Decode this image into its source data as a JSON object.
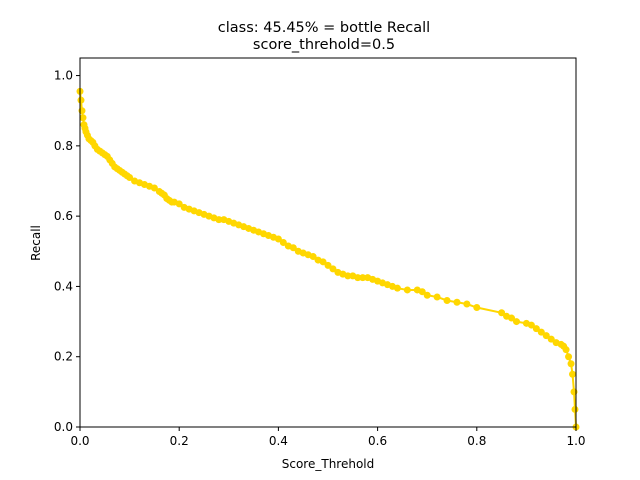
{
  "chart_data": {
    "type": "line",
    "title_line1": "class: 45.45% = bottle Recall",
    "title_line2": "score_threhold=0.5",
    "xlabel": "Score_Threhold",
    "ylabel": "Recall",
    "xlim": [
      0.0,
      1.0
    ],
    "ylim": [
      0.0,
      1.05
    ],
    "x_ticks": [
      "0.0",
      "0.2",
      "0.4",
      "0.6",
      "0.8",
      "1.0"
    ],
    "y_ticks": [
      "0.0",
      "0.2",
      "0.4",
      "0.6",
      "0.8",
      "1.0"
    ],
    "grid": false,
    "line_color": "#FFD700",
    "marker": "circle",
    "series": [
      {
        "x": [
          0.0,
          0.002,
          0.004,
          0.006,
          0.008,
          0.01,
          0.012,
          0.015,
          0.018,
          0.022,
          0.026,
          0.03,
          0.035,
          0.04,
          0.045,
          0.05,
          0.055,
          0.06,
          0.065,
          0.07,
          0.075,
          0.08,
          0.085,
          0.09,
          0.095,
          0.1,
          0.11,
          0.12,
          0.13,
          0.14,
          0.15,
          0.16,
          0.165,
          0.17,
          0.175,
          0.18,
          0.185,
          0.19,
          0.2,
          0.21,
          0.22,
          0.23,
          0.24,
          0.25,
          0.26,
          0.27,
          0.28,
          0.29,
          0.3,
          0.31,
          0.32,
          0.33,
          0.34,
          0.35,
          0.36,
          0.37,
          0.38,
          0.39,
          0.4,
          0.41,
          0.42,
          0.43,
          0.44,
          0.45,
          0.46,
          0.47,
          0.48,
          0.49,
          0.5,
          0.51,
          0.52,
          0.53,
          0.54,
          0.55,
          0.56,
          0.57,
          0.58,
          0.59,
          0.6,
          0.61,
          0.62,
          0.63,
          0.64,
          0.66,
          0.68,
          0.69,
          0.7,
          0.72,
          0.74,
          0.76,
          0.78,
          0.8,
          0.85,
          0.86,
          0.87,
          0.88,
          0.9,
          0.91,
          0.92,
          0.93,
          0.94,
          0.95,
          0.96,
          0.97,
          0.975,
          0.98,
          0.985,
          0.99,
          0.993,
          0.996,
          0.998,
          1.0
        ],
        "y": [
          0.955,
          0.93,
          0.9,
          0.88,
          0.86,
          0.85,
          0.84,
          0.83,
          0.82,
          0.815,
          0.81,
          0.8,
          0.79,
          0.785,
          0.78,
          0.775,
          0.77,
          0.76,
          0.75,
          0.74,
          0.735,
          0.73,
          0.725,
          0.72,
          0.715,
          0.71,
          0.7,
          0.695,
          0.69,
          0.685,
          0.68,
          0.67,
          0.665,
          0.66,
          0.65,
          0.645,
          0.64,
          0.64,
          0.635,
          0.625,
          0.62,
          0.615,
          0.61,
          0.605,
          0.6,
          0.595,
          0.59,
          0.59,
          0.585,
          0.58,
          0.575,
          0.57,
          0.565,
          0.56,
          0.555,
          0.55,
          0.545,
          0.54,
          0.535,
          0.525,
          0.515,
          0.51,
          0.5,
          0.495,
          0.49,
          0.485,
          0.475,
          0.47,
          0.46,
          0.45,
          0.44,
          0.435,
          0.43,
          0.43,
          0.425,
          0.425,
          0.425,
          0.42,
          0.415,
          0.41,
          0.405,
          0.4,
          0.395,
          0.39,
          0.39,
          0.385,
          0.375,
          0.37,
          0.36,
          0.355,
          0.35,
          0.34,
          0.325,
          0.315,
          0.31,
          0.3,
          0.295,
          0.29,
          0.28,
          0.27,
          0.26,
          0.25,
          0.24,
          0.235,
          0.23,
          0.22,
          0.2,
          0.18,
          0.15,
          0.1,
          0.05,
          0.0
        ]
      }
    ]
  }
}
